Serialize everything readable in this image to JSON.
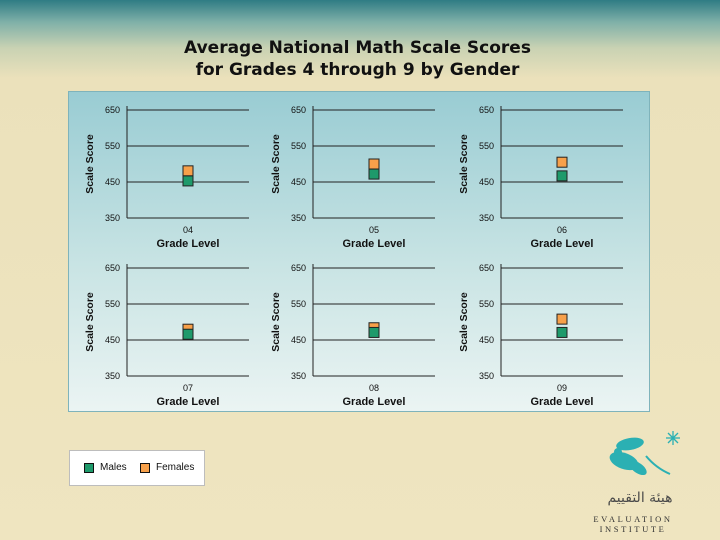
{
  "title": {
    "line1": "Average National Math Scale Scores",
    "line2": "for Grades 4 through 9 by Gender"
  },
  "legend": {
    "males": "Males",
    "females": "Females"
  },
  "colors": {
    "males": "#1e9a6b",
    "females": "#f7a04a"
  },
  "logo": {
    "arabic": "هيئة التقييم",
    "name": "EVALUATION INSTITUTE",
    "icon": "star-fish-logo-icon"
  },
  "chart_data": [
    {
      "type": "scatter",
      "category": "04",
      "xlabel": "Grade Level",
      "ylabel": "Scale Score",
      "yticks": [
        350,
        450,
        550,
        650
      ],
      "ylim": [
        350,
        650
      ],
      "grid": true,
      "series": [
        {
          "name": "Males",
          "value": 453
        },
        {
          "name": "Females",
          "value": 481
        }
      ]
    },
    {
      "type": "scatter",
      "category": "05",
      "xlabel": "Grade Level",
      "ylabel": "Scale Score",
      "yticks": [
        350,
        450,
        550,
        650
      ],
      "ylim": [
        350,
        650
      ],
      "grid": true,
      "series": [
        {
          "name": "Males",
          "value": 472
        },
        {
          "name": "Females",
          "value": 500
        }
      ]
    },
    {
      "type": "scatter",
      "category": "06",
      "xlabel": "Grade Level",
      "ylabel": "Scale Score",
      "yticks": [
        350,
        450,
        550,
        650
      ],
      "ylim": [
        350,
        650
      ],
      "grid": true,
      "series": [
        {
          "name": "Males",
          "value": 467
        },
        {
          "name": "Females",
          "value": 505
        }
      ]
    },
    {
      "type": "scatter",
      "category": "07",
      "xlabel": "Grade Level",
      "ylabel": "Scale Score",
      "yticks": [
        350,
        450,
        550,
        650
      ],
      "ylim": [
        350,
        650
      ],
      "grid": true,
      "series": [
        {
          "name": "Males",
          "value": 466
        },
        {
          "name": "Females",
          "value": 480
        }
      ]
    },
    {
      "type": "scatter",
      "category": "08",
      "xlabel": "Grade Level",
      "ylabel": "Scale Score",
      "yticks": [
        350,
        450,
        550,
        650
      ],
      "ylim": [
        350,
        650
      ],
      "grid": true,
      "series": [
        {
          "name": "Males",
          "value": 471
        },
        {
          "name": "Females",
          "value": 484
        }
      ]
    },
    {
      "type": "scatter",
      "category": "09",
      "xlabel": "Grade Level",
      "ylabel": "Scale Score",
      "yticks": [
        350,
        450,
        550,
        650
      ],
      "ylim": [
        350,
        650
      ],
      "grid": true,
      "series": [
        {
          "name": "Males",
          "value": 471
        },
        {
          "name": "Females",
          "value": 508
        }
      ]
    }
  ]
}
